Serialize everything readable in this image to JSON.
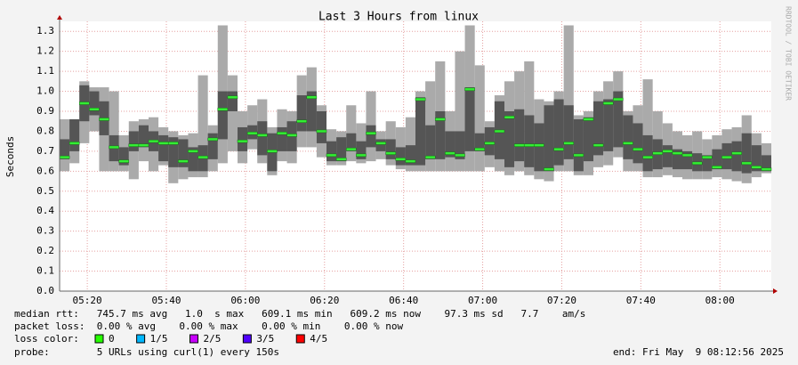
{
  "chart_data": {
    "type": "smoke",
    "title": "Last 3 Hours from linux",
    "ylabel": "Seconds",
    "watermark": "RRDTOOL / TOBI OETIKER",
    "x": [
      313,
      315.5,
      318,
      320.5,
      323,
      325.5,
      328,
      330.5,
      333,
      335.5,
      338,
      340.5,
      343,
      345.5,
      348,
      350.5,
      353,
      355.5,
      358,
      360.5,
      363,
      365.5,
      368,
      370.5,
      373,
      375.5,
      378,
      380.5,
      383,
      385.5,
      388,
      390.5,
      393,
      395.5,
      398,
      400.5,
      403,
      405.5,
      408,
      410.5,
      413,
      415.5,
      418,
      420.5,
      423,
      425.5,
      428,
      430.5,
      433,
      435.5,
      438,
      440.5,
      443,
      445.5,
      448,
      450.5,
      453,
      455.5,
      458,
      460.5,
      463,
      465.5,
      468,
      470.5,
      473,
      475.5,
      478,
      480.5,
      483,
      485.5,
      488,
      490.5
    ],
    "xlim": [
      313,
      493
    ],
    "xticks": [
      {
        "value": 320,
        "label": "05:20"
      },
      {
        "value": 340,
        "label": "05:40"
      },
      {
        "value": 360,
        "label": "06:00"
      },
      {
        "value": 380,
        "label": "06:20"
      },
      {
        "value": 400,
        "label": "06:40"
      },
      {
        "value": 420,
        "label": "07:00"
      },
      {
        "value": 440,
        "label": "07:20"
      },
      {
        "value": 460,
        "label": "07:40"
      },
      {
        "value": 480,
        "label": "08:00"
      }
    ],
    "ylim": [
      0,
      1.35
    ],
    "yticks": [
      {
        "value": 0,
        "label": "0.0"
      },
      0.1,
      0.2,
      0.3,
      0.4,
      0.5,
      0.6,
      0.7,
      0.8,
      0.9,
      {
        "value": 1,
        "label": "1.0"
      },
      1.1,
      1.2,
      1.3
    ],
    "grid": true,
    "bands": [
      {
        "color": "#aaaaaa",
        "low": [
          0.6,
          0.64,
          0.74,
          0.8,
          0.6,
          0.6,
          0.6,
          0.56,
          0.65,
          0.6,
          0.63,
          0.54,
          0.56,
          0.57,
          0.57,
          0.6,
          0.64,
          0.7,
          0.64,
          0.71,
          0.64,
          0.58,
          0.65,
          0.64,
          0.72,
          0.72,
          0.67,
          0.63,
          0.63,
          0.65,
          0.64,
          0.65,
          0.66,
          0.63,
          0.61,
          0.6,
          0.6,
          0.6,
          0.6,
          0.6,
          0.6,
          0.6,
          0.6,
          0.62,
          0.6,
          0.58,
          0.6,
          0.58,
          0.56,
          0.55,
          0.6,
          0.6,
          0.58,
          0.58,
          0.62,
          0.63,
          0.67,
          0.6,
          0.6,
          0.57,
          0.57,
          0.58,
          0.57,
          0.56,
          0.56,
          0.56,
          0.57,
          0.56,
          0.55,
          0.54,
          0.57,
          0.59
        ],
        "high": [
          0.86,
          0.86,
          1.05,
          1.02,
          1.02,
          1.0,
          0.78,
          0.85,
          0.86,
          0.87,
          0.82,
          0.8,
          0.78,
          0.79,
          1.08,
          0.83,
          1.33,
          1.08,
          0.9,
          0.93,
          0.96,
          0.82,
          0.91,
          0.9,
          1.08,
          1.12,
          0.93,
          0.81,
          0.8,
          0.93,
          0.84,
          1.0,
          0.8,
          0.85,
          0.82,
          0.87,
          1.0,
          1.05,
          1.15,
          0.9,
          1.2,
          1.33,
          1.13,
          0.85,
          0.98,
          1.05,
          1.1,
          1.15,
          0.96,
          0.95,
          1.0,
          1.33,
          0.88,
          0.9,
          1.0,
          1.05,
          1.1,
          0.9,
          0.93,
          1.06,
          0.9,
          0.84,
          0.8,
          0.78,
          0.8,
          0.76,
          0.78,
          0.81,
          0.82,
          0.88,
          0.79,
          0.74
        ]
      },
      {
        "color": "#555555",
        "low": [
          0.66,
          0.7,
          0.85,
          0.88,
          0.78,
          0.65,
          0.63,
          0.7,
          0.72,
          0.7,
          0.65,
          0.62,
          0.62,
          0.6,
          0.6,
          0.66,
          0.76,
          0.9,
          0.7,
          0.76,
          0.68,
          0.6,
          0.7,
          0.7,
          0.8,
          0.8,
          0.74,
          0.65,
          0.65,
          0.7,
          0.66,
          0.72,
          0.7,
          0.66,
          0.63,
          0.63,
          0.63,
          0.66,
          0.66,
          0.67,
          0.66,
          0.7,
          0.7,
          0.68,
          0.66,
          0.62,
          0.65,
          0.62,
          0.6,
          0.6,
          0.63,
          0.66,
          0.6,
          0.65,
          0.68,
          0.7,
          0.72,
          0.66,
          0.64,
          0.6,
          0.61,
          0.62,
          0.61,
          0.61,
          0.6,
          0.6,
          0.61,
          0.61,
          0.6,
          0.59,
          0.6,
          0.6
        ],
        "high": [
          0.76,
          0.86,
          1.03,
          1.0,
          0.95,
          0.78,
          0.72,
          0.8,
          0.83,
          0.8,
          0.78,
          0.77,
          0.76,
          0.72,
          0.73,
          0.79,
          1.0,
          1.0,
          0.82,
          0.83,
          0.85,
          0.79,
          0.82,
          0.85,
          0.98,
          1.0,
          0.9,
          0.75,
          0.77,
          0.79,
          0.75,
          0.83,
          0.76,
          0.76,
          0.72,
          0.73,
          0.97,
          0.83,
          0.9,
          0.8,
          0.8,
          1.02,
          0.79,
          0.82,
          0.95,
          0.9,
          0.91,
          0.88,
          0.84,
          0.93,
          0.96,
          0.93,
          0.86,
          0.87,
          0.95,
          0.96,
          1.0,
          0.88,
          0.84,
          0.78,
          0.76,
          0.73,
          0.71,
          0.7,
          0.69,
          0.68,
          0.71,
          0.74,
          0.75,
          0.79,
          0.73,
          0.68
        ]
      }
    ],
    "series": [
      {
        "color": "#33ee33",
        "values": [
          0.67,
          0.74,
          0.94,
          0.91,
          0.86,
          0.72,
          0.65,
          0.73,
          0.73,
          0.75,
          0.74,
          0.74,
          0.65,
          0.7,
          0.67,
          0.76,
          0.91,
          0.97,
          0.75,
          0.79,
          0.78,
          0.7,
          0.79,
          0.78,
          0.85,
          0.97,
          0.8,
          0.68,
          0.66,
          0.71,
          0.68,
          0.79,
          0.74,
          0.69,
          0.66,
          0.65,
          0.96,
          0.67,
          0.86,
          0.69,
          0.68,
          1.01,
          0.71,
          0.74,
          0.8,
          0.87,
          0.73,
          0.73,
          0.73,
          0.61,
          0.71,
          0.74,
          0.68,
          0.86,
          0.73,
          0.94,
          0.96,
          0.74,
          0.71,
          0.67,
          0.69,
          0.7,
          0.69,
          0.68,
          0.64,
          0.67,
          0.62,
          0.67,
          0.69,
          0.64,
          0.62,
          0.61
        ]
      }
    ]
  },
  "footer": {
    "lines": [
      "median rtt:   745.7 ms avg   1.0  s max   609.1 ms min   609.2 ms now    97.3 ms sd   7.7    am/s",
      "packet loss:  0.00 % avg    0.00 % max    0.00 % min    0.00 % now"
    ],
    "loss_label": "loss color:",
    "loss_colors": [
      {
        "label": "0",
        "color": "#26ff00"
      },
      {
        "label": "1/5",
        "color": "#00b8ff"
      },
      {
        "label": "2/5",
        "color": "#c800ff"
      },
      {
        "label": "3/5",
        "color": "#5000ff"
      },
      {
        "label": "4/5",
        "color": "#ff0000"
      }
    ],
    "probe": "probe:        5 URLs using curl(1) every 150s",
    "end": "end: Fri May  9 08:12:56 2025"
  }
}
